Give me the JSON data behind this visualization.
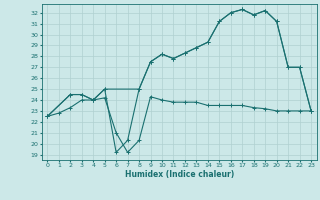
{
  "title": "",
  "xlabel": "Humidex (Indice chaleur)",
  "bg_color": "#cce8e8",
  "grid_color": "#b0d0d0",
  "line_color": "#1a7070",
  "xlim": [
    -0.5,
    23.5
  ],
  "ylim": [
    18.5,
    32.8
  ],
  "yticks": [
    19,
    20,
    21,
    22,
    23,
    24,
    25,
    26,
    27,
    28,
    29,
    30,
    31,
    32
  ],
  "xticks": [
    0,
    1,
    2,
    3,
    4,
    5,
    6,
    7,
    8,
    9,
    10,
    11,
    12,
    13,
    14,
    15,
    16,
    17,
    18,
    19,
    20,
    21,
    22,
    23
  ],
  "series1": {
    "x": [
      0,
      1,
      2,
      3,
      4,
      5,
      6,
      7,
      8,
      9,
      10,
      11,
      12,
      13,
      14,
      15,
      16,
      17,
      18,
      19,
      20,
      21,
      22,
      23
    ],
    "y": [
      22.5,
      22.8,
      23.3,
      24.0,
      24.0,
      24.2,
      21.0,
      19.2,
      20.3,
      24.3,
      24.0,
      23.8,
      23.8,
      23.8,
      23.5,
      23.5,
      23.5,
      23.5,
      23.3,
      23.2,
      23.0,
      23.0,
      23.0,
      23.0
    ]
  },
  "series2": {
    "x": [
      0,
      2,
      3,
      4,
      5,
      8,
      9,
      10,
      11,
      12,
      13,
      14,
      15,
      16,
      17,
      18,
      19,
      20,
      21,
      22,
      23
    ],
    "y": [
      22.5,
      24.5,
      24.5,
      24.0,
      25.0,
      25.0,
      27.5,
      28.2,
      27.8,
      28.3,
      28.8,
      29.3,
      31.2,
      32.0,
      32.3,
      31.8,
      32.2,
      31.2,
      27.0,
      27.0,
      23.0
    ]
  },
  "series3": {
    "x": [
      0,
      2,
      3,
      4,
      5,
      6,
      7,
      8,
      9,
      10,
      11,
      12,
      13,
      14,
      15,
      16,
      17,
      18,
      19,
      20,
      21,
      22,
      23
    ],
    "y": [
      22.5,
      24.5,
      24.5,
      24.0,
      25.0,
      19.2,
      20.3,
      25.0,
      27.5,
      28.2,
      27.8,
      28.3,
      28.8,
      29.3,
      31.2,
      32.0,
      32.3,
      31.8,
      32.2,
      31.2,
      27.0,
      27.0,
      23.0
    ]
  }
}
